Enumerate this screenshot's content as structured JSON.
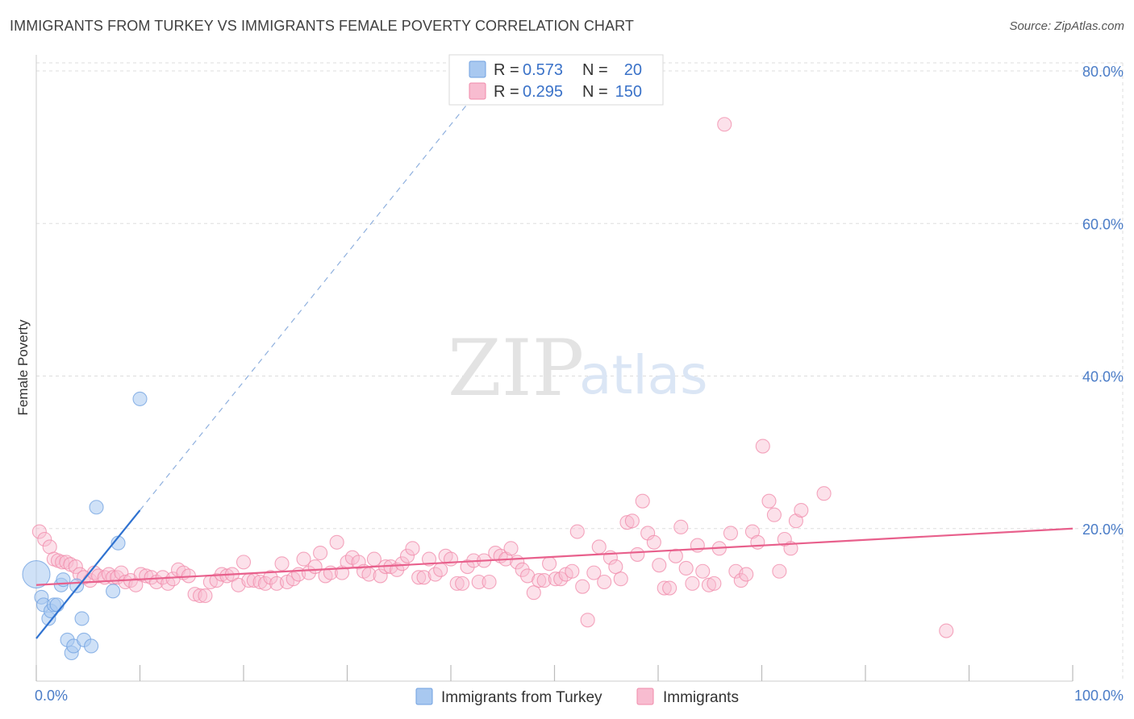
{
  "header": {
    "title": "IMMIGRANTS FROM TURKEY VS IMMIGRANTS FEMALE POVERTY CORRELATION CHART",
    "source": "Source: ZipAtlas.com"
  },
  "watermark": {
    "zip": "ZIP",
    "atlas": "atlas"
  },
  "legend": {
    "r_label": "R =",
    "n_label": "N =",
    "rows": [
      {
        "r": "0.573",
        "n": "20",
        "color": "#a8c8f0"
      },
      {
        "r": "0.295",
        "n": "150",
        "color": "#f8bcd0"
      }
    ]
  },
  "bottom_legend": [
    {
      "label": "Immigrants from Turkey",
      "color": "#a8c8f0"
    },
    {
      "label": "Immigrants",
      "color": "#f8bcd0"
    }
  ],
  "chart_data": {
    "type": "scatter",
    "ylabel": "Female Poverty",
    "xlim": [
      0,
      100
    ],
    "ylim": [
      0,
      80
    ],
    "x_tick_labels": [
      "0.0%",
      "100.0%"
    ],
    "y_ticks": [
      {
        "value": 20,
        "label": "20.0%"
      },
      {
        "value": 40,
        "label": "40.0%"
      },
      {
        "value": 60,
        "label": "60.0%"
      },
      {
        "value": 80,
        "label": "80.0%"
      }
    ],
    "grid": true,
    "colors": {
      "turkey": "#6fa0e0",
      "immigrants": "#f08aaa",
      "turkey_line": "#2f72d0",
      "immigrants_line": "#e8608c"
    },
    "series": [
      {
        "name": "Immigrants from Turkey",
        "key": "turkey",
        "points": [
          [
            0.0,
            14.0,
            3
          ],
          [
            0.5,
            11.0,
            1
          ],
          [
            0.7,
            10.0,
            1
          ],
          [
            1.2,
            8.2,
            1
          ],
          [
            1.4,
            9.2,
            1
          ],
          [
            1.7,
            10.0,
            1
          ],
          [
            2.0,
            10.0,
            1
          ],
          [
            2.4,
            12.6,
            1
          ],
          [
            2.6,
            13.3,
            1
          ],
          [
            3.0,
            5.4,
            1
          ],
          [
            3.4,
            3.7,
            1
          ],
          [
            3.6,
            4.6,
            1
          ],
          [
            3.9,
            12.5,
            1
          ],
          [
            4.4,
            8.2,
            1
          ],
          [
            4.6,
            5.4,
            1
          ],
          [
            5.3,
            4.6,
            1
          ],
          [
            5.8,
            22.8,
            1
          ],
          [
            7.4,
            11.8,
            1
          ],
          [
            7.9,
            18.1,
            1
          ],
          [
            10.0,
            37.0,
            1
          ]
        ],
        "trend": {
          "x": [
            0,
            10
          ],
          "y": [
            5.6,
            22.4
          ]
        },
        "trend_extension": {
          "x": [
            10,
            41.5
          ],
          "y": [
            22.4,
            75.5
          ]
        }
      },
      {
        "name": "Immigrants",
        "key": "immigrants",
        "points": [
          [
            0.3,
            19.6
          ],
          [
            0.8,
            18.6
          ],
          [
            1.3,
            17.6
          ],
          [
            1.7,
            16.0
          ],
          [
            2.1,
            15.8
          ],
          [
            2.5,
            15.6
          ],
          [
            2.9,
            15.6
          ],
          [
            3.3,
            15.3
          ],
          [
            3.8,
            15.0
          ],
          [
            4.2,
            14.0
          ],
          [
            4.6,
            13.6
          ],
          [
            5.2,
            13.2
          ],
          [
            5.6,
            14.2
          ],
          [
            6.0,
            13.8
          ],
          [
            6.6,
            13.6
          ],
          [
            7.0,
            14.0
          ],
          [
            7.4,
            13.6
          ],
          [
            7.8,
            13.6
          ],
          [
            8.2,
            14.2
          ],
          [
            8.6,
            13.0
          ],
          [
            9.1,
            13.2
          ],
          [
            9.6,
            12.6
          ],
          [
            10.1,
            14.0
          ],
          [
            10.6,
            13.8
          ],
          [
            11.1,
            13.6
          ],
          [
            11.6,
            13.0
          ],
          [
            12.2,
            13.6
          ],
          [
            12.7,
            12.8
          ],
          [
            13.2,
            13.4
          ],
          [
            13.7,
            14.6
          ],
          [
            14.2,
            14.2
          ],
          [
            14.7,
            13.8
          ],
          [
            15.3,
            11.4
          ],
          [
            15.8,
            11.2
          ],
          [
            16.3,
            11.2
          ],
          [
            16.8,
            13.0
          ],
          [
            17.4,
            13.2
          ],
          [
            17.9,
            14.0
          ],
          [
            18.4,
            13.8
          ],
          [
            18.9,
            14.0
          ],
          [
            19.5,
            12.6
          ],
          [
            20.0,
            15.6
          ],
          [
            20.5,
            13.2
          ],
          [
            21.0,
            13.2
          ],
          [
            21.6,
            13.0
          ],
          [
            22.1,
            12.8
          ],
          [
            22.6,
            13.6
          ],
          [
            23.2,
            12.8
          ],
          [
            23.7,
            15.4
          ],
          [
            24.2,
            13.0
          ],
          [
            24.8,
            13.4
          ],
          [
            25.3,
            14.0
          ],
          [
            25.8,
            16.0
          ],
          [
            26.3,
            14.2
          ],
          [
            26.9,
            15.0
          ],
          [
            27.4,
            16.8
          ],
          [
            27.9,
            13.8
          ],
          [
            28.4,
            14.2
          ],
          [
            29.0,
            18.2
          ],
          [
            29.5,
            14.2
          ],
          [
            30.0,
            15.6
          ],
          [
            30.5,
            16.2
          ],
          [
            31.1,
            15.6
          ],
          [
            31.6,
            14.4
          ],
          [
            32.1,
            14.0
          ],
          [
            32.6,
            16.0
          ],
          [
            33.2,
            13.8
          ],
          [
            33.7,
            15.0
          ],
          [
            34.2,
            15.0
          ],
          [
            34.8,
            14.6
          ],
          [
            35.3,
            15.4
          ],
          [
            35.8,
            16.4
          ],
          [
            36.3,
            17.4
          ],
          [
            36.9,
            13.6
          ],
          [
            37.4,
            13.6
          ],
          [
            37.9,
            16.0
          ],
          [
            38.5,
            14.0
          ],
          [
            39.0,
            14.6
          ],
          [
            39.5,
            16.4
          ],
          [
            40.0,
            16.0
          ],
          [
            40.6,
            12.8
          ],
          [
            41.1,
            12.8
          ],
          [
            41.6,
            15.0
          ],
          [
            42.2,
            15.8
          ],
          [
            42.7,
            13.0
          ],
          [
            43.2,
            15.8
          ],
          [
            43.7,
            13.0
          ],
          [
            44.3,
            16.8
          ],
          [
            44.8,
            16.4
          ],
          [
            45.3,
            16.0
          ],
          [
            45.8,
            17.4
          ],
          [
            46.4,
            15.6
          ],
          [
            46.9,
            14.6
          ],
          [
            47.4,
            13.8
          ],
          [
            48.0,
            11.6
          ],
          [
            48.5,
            13.2
          ],
          [
            49.0,
            13.2
          ],
          [
            49.5,
            15.4
          ],
          [
            50.1,
            13.4
          ],
          [
            50.6,
            13.4
          ],
          [
            51.1,
            14.0
          ],
          [
            51.7,
            14.4
          ],
          [
            52.2,
            19.6
          ],
          [
            52.7,
            12.4
          ],
          [
            53.2,
            8.0
          ],
          [
            53.8,
            14.2
          ],
          [
            54.3,
            17.6
          ],
          [
            54.8,
            13.0
          ],
          [
            55.4,
            16.2
          ],
          [
            55.9,
            15.0
          ],
          [
            56.4,
            13.4
          ],
          [
            57.0,
            20.8
          ],
          [
            57.5,
            21.0
          ],
          [
            58.0,
            16.6
          ],
          [
            58.5,
            23.6
          ],
          [
            59.0,
            19.4
          ],
          [
            59.6,
            18.2
          ],
          [
            60.1,
            15.2
          ],
          [
            60.6,
            12.2
          ],
          [
            61.1,
            12.2
          ],
          [
            61.7,
            16.4
          ],
          [
            62.2,
            20.2
          ],
          [
            62.7,
            14.8
          ],
          [
            63.3,
            12.8
          ],
          [
            63.8,
            17.8
          ],
          [
            64.3,
            14.4
          ],
          [
            64.9,
            12.6
          ],
          [
            65.4,
            12.8
          ],
          [
            65.9,
            17.4
          ],
          [
            66.4,
            73.0
          ],
          [
            67.0,
            19.4
          ],
          [
            67.5,
            14.4
          ],
          [
            68.0,
            13.2
          ],
          [
            68.5,
            14.0
          ],
          [
            69.1,
            19.6
          ],
          [
            69.6,
            18.2
          ],
          [
            70.1,
            30.8
          ],
          [
            70.7,
            23.6
          ],
          [
            71.2,
            21.8
          ],
          [
            71.7,
            14.4
          ],
          [
            72.2,
            18.6
          ],
          [
            72.8,
            17.4
          ],
          [
            73.3,
            21.0
          ],
          [
            73.8,
            22.4
          ],
          [
            76.0,
            24.6
          ],
          [
            87.8,
            6.6
          ]
        ],
        "trend": {
          "x": [
            0,
            100
          ],
          "y": [
            12.6,
            20.0
          ]
        }
      }
    ]
  }
}
